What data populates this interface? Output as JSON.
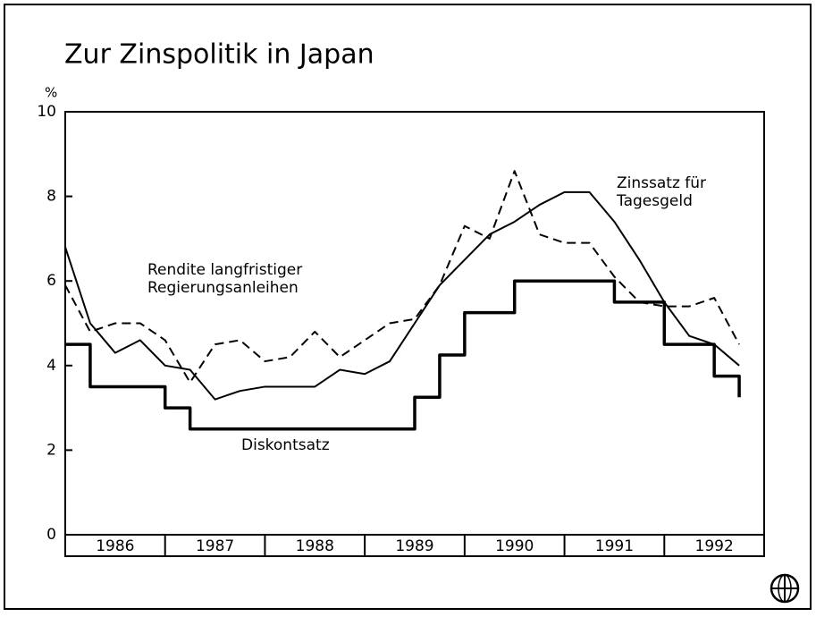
{
  "chart_data": {
    "type": "line",
    "title": "Zur Zinspolitik in Japan",
    "y_unit": "%",
    "categories": [
      "1986",
      "1987",
      "1988",
      "1989",
      "1990",
      "1991",
      "1992"
    ],
    "xlim": [
      1986,
      1993
    ],
    "xticks": [
      1987,
      1988,
      1989,
      1990,
      1991,
      1992
    ],
    "ylim": [
      0,
      10
    ],
    "yticks": [
      0,
      2,
      4,
      6,
      8,
      10
    ],
    "x": [
      1986.0,
      1986.25,
      1986.5,
      1986.75,
      1987.0,
      1987.25,
      1987.5,
      1987.75,
      1988.0,
      1988.25,
      1988.5,
      1988.75,
      1989.0,
      1989.25,
      1989.5,
      1989.75,
      1990.0,
      1990.25,
      1990.5,
      1990.75,
      1991.0,
      1991.25,
      1991.5,
      1991.75,
      1992.0,
      1992.25,
      1992.5,
      1992.75
    ],
    "series": [
      {
        "name": "Zinssatz für Tagesgeld",
        "color": "#000000",
        "style": "solid",
        "width": 2,
        "values": [
          6.8,
          5.0,
          4.3,
          4.6,
          4.0,
          3.9,
          3.2,
          3.4,
          3.5,
          3.5,
          3.5,
          3.9,
          3.8,
          4.1,
          5.0,
          5.9,
          6.5,
          7.1,
          7.4,
          7.8,
          8.1,
          8.1,
          7.4,
          6.5,
          5.5,
          4.7,
          4.5,
          4.0
        ]
      },
      {
        "name": "Rendite langfristiger Regierungsanleihen",
        "color": "#000000",
        "style": "dashed",
        "width": 2,
        "values": [
          5.9,
          4.8,
          5.0,
          5.0,
          4.6,
          3.6,
          4.5,
          4.6,
          4.1,
          4.2,
          4.8,
          4.2,
          4.6,
          5.0,
          5.1,
          5.9,
          7.3,
          7.0,
          8.6,
          7.1,
          6.9,
          6.9,
          6.1,
          5.5,
          5.4,
          5.4,
          5.6,
          4.5
        ]
      },
      {
        "name": "Diskontsatz",
        "color": "#000000",
        "style": "step",
        "width": 3.5,
        "values": [
          4.5,
          3.5,
          3.5,
          3.5,
          3.0,
          2.5,
          2.5,
          2.5,
          2.5,
          2.5,
          2.5,
          2.5,
          2.5,
          2.5,
          3.25,
          4.25,
          5.25,
          5.25,
          6.0,
          6.0,
          6.0,
          6.0,
          5.5,
          5.5,
          4.5,
          4.5,
          3.75,
          3.25
        ]
      }
    ]
  }
}
